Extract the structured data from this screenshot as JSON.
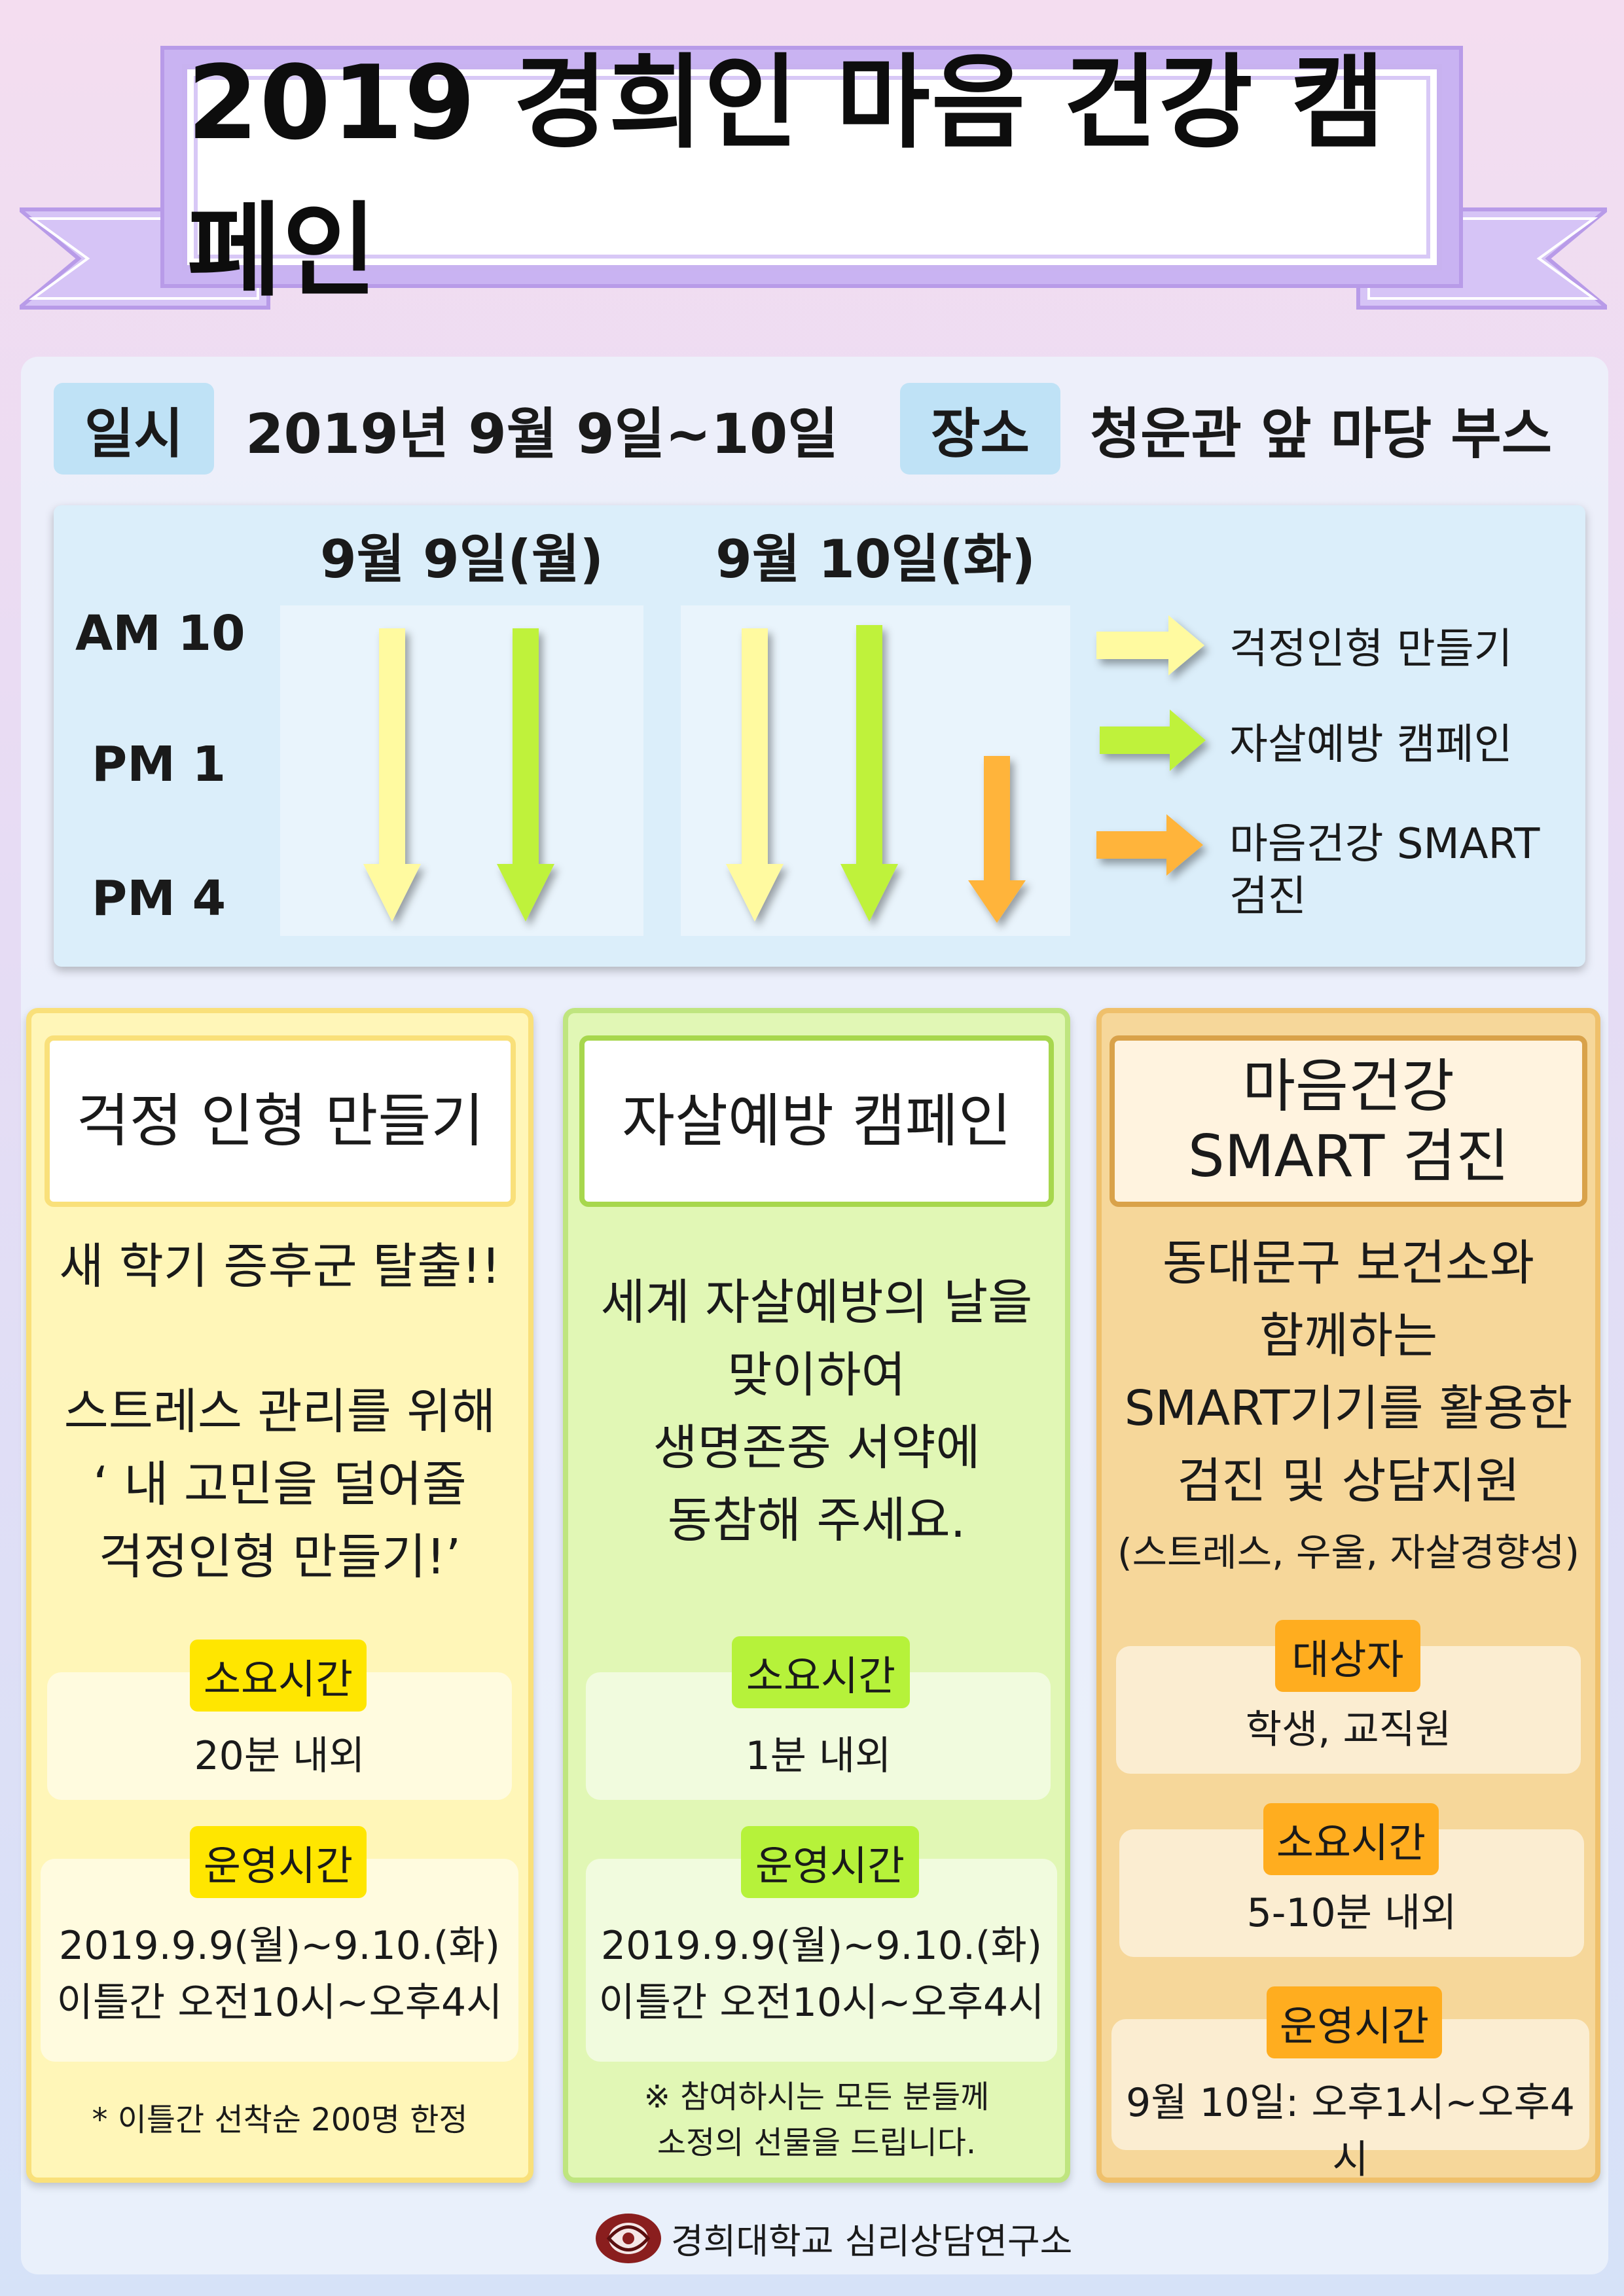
{
  "title": "2019 경희인 마음 건강 캠페인",
  "info": {
    "date_label": "일시",
    "date_value": "2019년 9월 9일~10일",
    "place_label": "장소",
    "place_value": "청운관 앞 마당 부스"
  },
  "schedule": {
    "day1": "9월 9일(월)",
    "day2": "9월 10일(화)",
    "times": [
      "AM 10",
      "PM 1",
      "PM 4"
    ],
    "legend": [
      {
        "label": "걱정인형 만들기",
        "color": "#fffaa0"
      },
      {
        "label": "자살예방 캠페인",
        "color": "#bff23a"
      },
      {
        "label_line1": "마음건강 SMART",
        "label_line2": "검진",
        "color": "#ffb43a"
      }
    ]
  },
  "columns": {
    "doll": {
      "heading": "걱정 인형 만들기",
      "desc": [
        "새 학기 증후군 탈출!!",
        "",
        "스트레스 관리를 위해",
        "‘ 내 고민을 덜어줄",
        "걱정인형 만들기!’"
      ],
      "duration_tag": "소요시간",
      "duration": "20분 내외",
      "hours_tag": "운영시간",
      "hours_line1": "2019.9.9(월)~9.10.(화)",
      "hours_line2": "이틀간 오전10시~오후4시",
      "note": "* 이틀간 선착순 200명 한정",
      "tag_color": "#ffe600"
    },
    "prevention": {
      "heading": "자살예방 캠페인",
      "desc": [
        "세계 자살예방의 날을",
        "맞이하여",
        "생명존중 서약에",
        "동참해 주세요."
      ],
      "duration_tag": "소요시간",
      "duration": "1분 내외",
      "hours_tag": "운영시간",
      "hours_line1": "2019.9.9(월)~9.10.(화)",
      "hours_line2": "이틀간 오전10시~오후4시",
      "note_line1": "※ 참여하시는 모든 분들께",
      "note_line2": "소정의 선물을 드립니다.",
      "tag_color": "#b6f23a"
    },
    "smart": {
      "heading_line1": "마음건강",
      "heading_line2": "SMART 검진",
      "desc": [
        "동대문구 보건소와",
        "함께하는",
        "SMART기기를 활용한",
        "검진 및 상담지원"
      ],
      "desc_sub": "(스트레스, 우울, 자살경향성)",
      "target_tag": "대상자",
      "target": "학생, 교직원",
      "duration_tag": "소요시간",
      "duration": "5-10분 내외",
      "hours_tag": "운영시간",
      "hours": "9월 10일: 오후1시~오후4시",
      "tag_color": "#ffad1f"
    }
  },
  "footer": "경희대학교 심리상담연구소"
}
